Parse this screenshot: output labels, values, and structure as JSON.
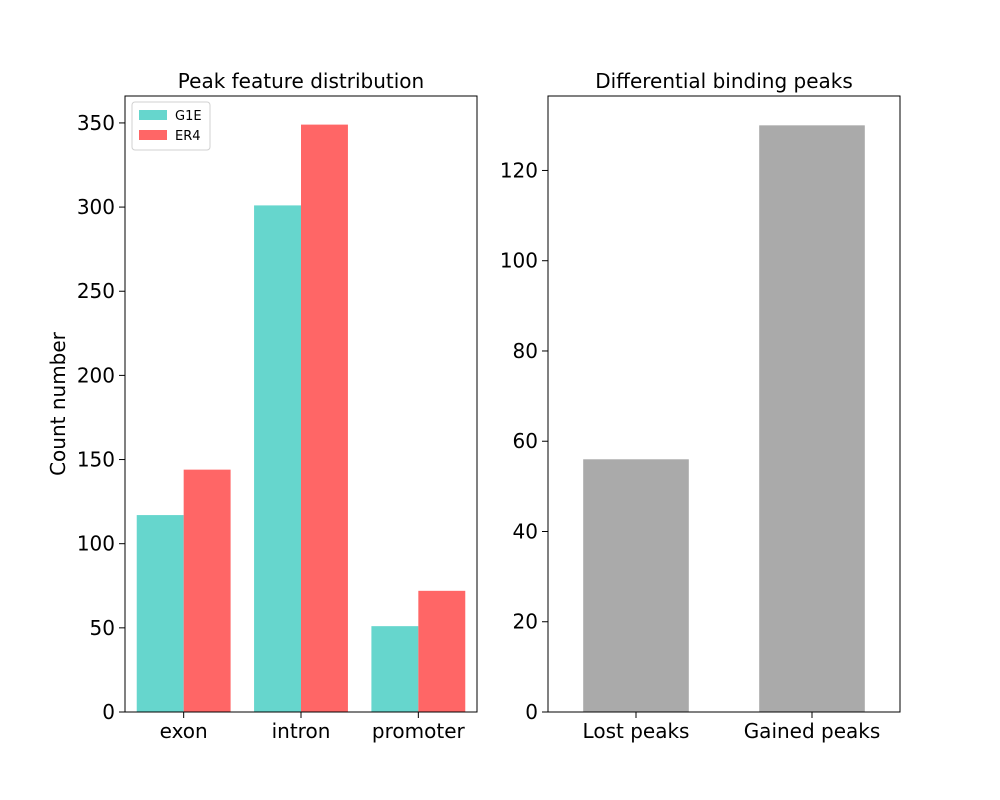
{
  "chart_data": [
    {
      "type": "bar",
      "title": "Peak feature distribution",
      "xlabel": "",
      "ylabel": "Count number",
      "categories": [
        "exon",
        "intron",
        "promoter"
      ],
      "series": [
        {
          "name": "G1E",
          "color": "#66d6cd",
          "values": [
            117,
            301,
            51
          ]
        },
        {
          "name": "ER4",
          "color": "#ff6666",
          "values": [
            144,
            349,
            72
          ]
        }
      ],
      "ylim": [
        0,
        366
      ],
      "yticks": [
        0,
        50,
        100,
        150,
        200,
        250,
        300,
        350
      ],
      "legend": "top-left",
      "grid": false
    },
    {
      "type": "bar",
      "title": "Differential binding peaks",
      "xlabel": "",
      "ylabel": "",
      "categories": [
        "Lost peaks",
        "Gained peaks"
      ],
      "series": [
        {
          "color": "#aaaaaa",
          "values": [
            56,
            130
          ]
        }
      ],
      "ylim": [
        0,
        136.5
      ],
      "yticks": [
        0,
        20,
        40,
        60,
        80,
        100,
        120
      ],
      "legend": "none",
      "grid": false
    }
  ]
}
